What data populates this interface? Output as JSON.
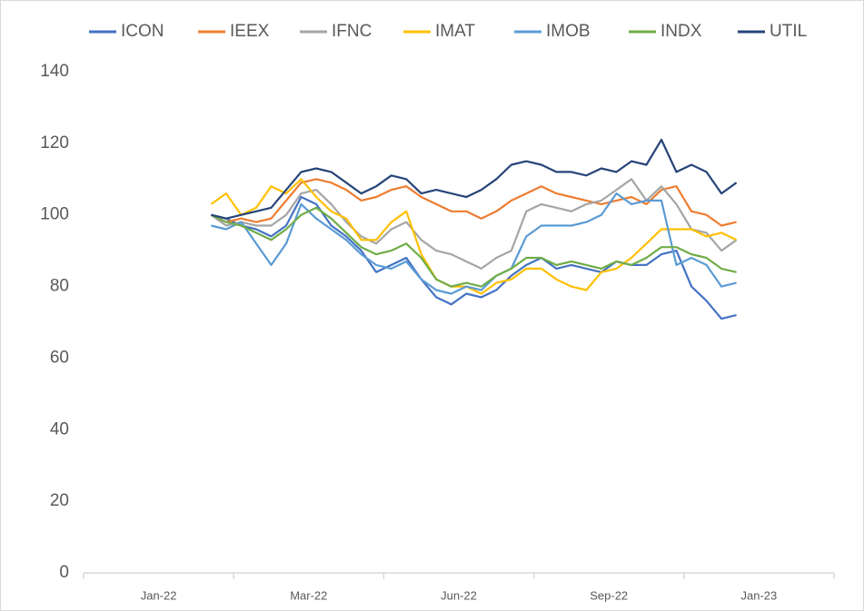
{
  "chart_data": {
    "type": "line",
    "x": [
      1.7,
      1.9,
      2.1,
      2.3,
      2.5,
      2.7,
      2.9,
      3.1,
      3.3,
      3.5,
      3.7,
      3.9,
      4.1,
      4.3,
      4.5,
      4.7,
      4.9,
      5.1,
      5.3,
      5.5,
      5.7,
      5.9,
      6.1,
      6.3,
      6.5,
      6.7,
      6.9,
      7.1,
      7.3,
      7.5,
      7.7,
      7.9,
      8.1,
      8.3,
      8.5,
      8.7
    ],
    "xlim": [
      0,
      10
    ],
    "xticks": [
      {
        "value": 1,
        "label": "Jan-22"
      },
      {
        "value": 3,
        "label": "Mar-22"
      },
      {
        "value": 5,
        "label": "Jun-22"
      },
      {
        "value": 7,
        "label": "Sep-22"
      },
      {
        "value": 9,
        "label": "Jan-23"
      }
    ],
    "xtick_marks": [
      0,
      2,
      4,
      6,
      8,
      10
    ],
    "ylim": [
      0,
      140
    ],
    "yticks": [
      0,
      20,
      40,
      60,
      80,
      100,
      120,
      140
    ],
    "grid": false,
    "legend": "top",
    "series": [
      {
        "name": "ICON",
        "color": "#4472c4",
        "values": [
          100,
          99,
          97,
          96,
          94,
          97,
          105,
          103,
          97,
          94,
          90,
          84,
          86,
          88,
          82,
          77,
          75,
          78,
          77,
          79,
          83,
          86,
          88,
          85,
          86,
          85,
          84,
          87,
          86,
          86,
          89,
          90,
          80,
          76,
          71,
          72
        ]
      },
      {
        "name": "IEEX",
        "color": "#ed7d31",
        "values": [
          100,
          98,
          99,
          98,
          99,
          104,
          109,
          110,
          109,
          107,
          104,
          105,
          107,
          108,
          105,
          103,
          101,
          101,
          99,
          101,
          104,
          106,
          108,
          106,
          105,
          104,
          103,
          104,
          105,
          103,
          107,
          108,
          101,
          100,
          97,
          98
        ]
      },
      {
        "name": "IFNC",
        "color": "#a5a5a5",
        "values": [
          100,
          97,
          98,
          97,
          97,
          100,
          106,
          107,
          103,
          98,
          94,
          92,
          96,
          98,
          93,
          90,
          89,
          87,
          85,
          88,
          90,
          101,
          103,
          102,
          101,
          103,
          104,
          107,
          110,
          104,
          108,
          103,
          96,
          95,
          90,
          93
        ]
      },
      {
        "name": "IMAT",
        "color": "#ffc000",
        "values": [
          103,
          106,
          100,
          102,
          108,
          106,
          110,
          105,
          101,
          99,
          93,
          93,
          98,
          101,
          89,
          82,
          80,
          80,
          78,
          81,
          82,
          85,
          85,
          82,
          80,
          79,
          84,
          85,
          88,
          92,
          96,
          96,
          96,
          94,
          95,
          93
        ]
      },
      {
        "name": "IMOB",
        "color": "#5b9bd5",
        "values": [
          97,
          96,
          98,
          92,
          86,
          92,
          103,
          99,
          96,
          93,
          89,
          86,
          85,
          87,
          82,
          79,
          78,
          80,
          79,
          83,
          85,
          94,
          97,
          97,
          97,
          98,
          100,
          106,
          103,
          104,
          104,
          86,
          88,
          86,
          80,
          81
        ]
      },
      {
        "name": "INDX",
        "color": "#70ad47",
        "values": [
          100,
          98,
          97,
          95,
          93,
          96,
          100,
          102,
          99,
          95,
          91,
          89,
          90,
          92,
          88,
          82,
          80,
          81,
          80,
          83,
          85,
          88,
          88,
          86,
          87,
          86,
          85,
          87,
          86,
          88,
          91,
          91,
          89,
          88,
          85,
          84
        ]
      },
      {
        "name": "UTIL",
        "color": "#264478",
        "values": [
          100,
          99,
          100,
          101,
          102,
          107,
          112,
          113,
          112,
          109,
          106,
          108,
          111,
          110,
          106,
          107,
          106,
          105,
          107,
          110,
          114,
          115,
          114,
          112,
          112,
          111,
          113,
          112,
          115,
          114,
          121,
          112,
          114,
          112,
          106,
          109
        ]
      }
    ]
  }
}
